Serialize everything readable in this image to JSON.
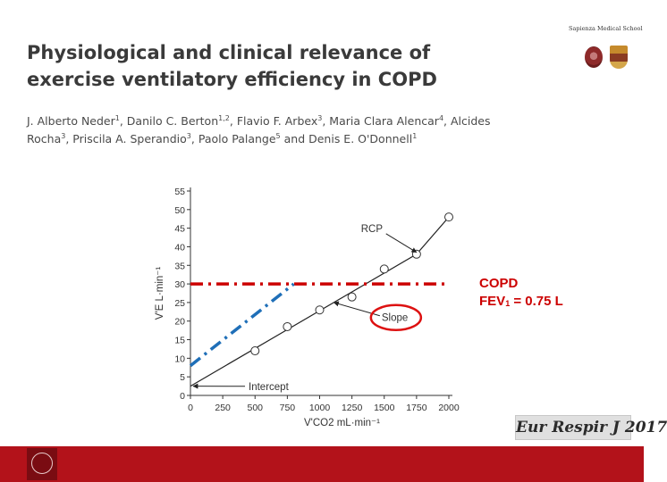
{
  "title": {
    "line1": "Physiological and clinical relevance of",
    "line2": "exercise ventilatory efficiency in COPD"
  },
  "authors": [
    {
      "name": "J. Alberto Neder",
      "aff": "1",
      "sep": ", "
    },
    {
      "name": "Danilo C. Berton",
      "aff": "1,2",
      "sep": ", "
    },
    {
      "name": "Flavio F. Arbex",
      "aff": "3",
      "sep": ", "
    },
    {
      "name": "Maria Clara Alencar",
      "aff": "4",
      "sep": ", "
    },
    {
      "name": "Alcides Rocha",
      "aff": "3",
      "sep": ", "
    },
    {
      "name": "Priscila A. Sperandio",
      "aff": "3",
      "sep": ", "
    },
    {
      "name": "Paolo Palange",
      "aff": "5",
      "sep": " and "
    },
    {
      "name": "Denis E. O'Donnell",
      "aff": "1",
      "sep": ""
    }
  ],
  "logo": {
    "text": "Sapienza Medical School",
    "icons": [
      "university-seal-icon",
      "college-crest-icon"
    ]
  },
  "annotation": {
    "line1": "COPD",
    "line2_prefix": "FEV",
    "line2_sub": "1",
    "line2_suffix": " = 0.75 L",
    "color": "#cc0000"
  },
  "journal": "Eur Respir J 2017",
  "footer": {
    "color": "#b3121a",
    "icon": "sapienza-seal-icon"
  },
  "chart_data": {
    "type": "scatter",
    "title": "",
    "xlabel": "V'CO2 mL·min⁻¹",
    "ylabel": "V'E L·min⁻¹",
    "xlim": [
      0,
      2000
    ],
    "ylim": [
      0,
      55
    ],
    "x_ticks": [
      0,
      250,
      500,
      750,
      1000,
      1250,
      1500,
      1750,
      2000
    ],
    "y_ticks": [
      0,
      5,
      10,
      15,
      20,
      25,
      30,
      35,
      40,
      45,
      50,
      55
    ],
    "grid": false,
    "series": [
      {
        "name": "VE vs VCO2",
        "marker": "open-circle",
        "points": [
          {
            "x": 500,
            "y": 12
          },
          {
            "x": 750,
            "y": 18.5
          },
          {
            "x": 1000,
            "y": 23
          },
          {
            "x": 1250,
            "y": 26.5
          },
          {
            "x": 1500,
            "y": 34
          },
          {
            "x": 1750,
            "y": 38
          },
          {
            "x": 2000,
            "y": 48
          }
        ]
      }
    ],
    "lines": [
      {
        "name": "regression-line",
        "style": "solid",
        "color": "#222222",
        "points": [
          {
            "x": 0,
            "y": 2.5
          },
          {
            "x": 1750,
            "y": 38
          },
          {
            "x": 2000,
            "y": 48
          }
        ]
      },
      {
        "name": "ventilatory-limit-line",
        "style": "dash-dot",
        "color": "#cc0000",
        "points": [
          {
            "x": 0,
            "y": 30
          },
          {
            "x": 2000,
            "y": 30
          }
        ]
      },
      {
        "name": "extrapolated-slope-line",
        "style": "dash-dot",
        "color": "#1f6fb8",
        "points": [
          {
            "x": 0,
            "y": 8
          },
          {
            "x": 800,
            "y": 30
          }
        ]
      }
    ],
    "annotations": [
      {
        "text": "RCP",
        "x": 1320,
        "y": 44,
        "arrow_to": {
          "x": 1750,
          "y": 38.5
        }
      },
      {
        "text": "Slope",
        "x": 1480,
        "y": 20,
        "arrow_to": {
          "x": 1110,
          "y": 25
        },
        "highlight": "red-ellipse"
      },
      {
        "text": "Intercept",
        "x": 450,
        "y": 1.5,
        "arrow_to": {
          "x": 0,
          "y": 2.5
        }
      }
    ]
  }
}
